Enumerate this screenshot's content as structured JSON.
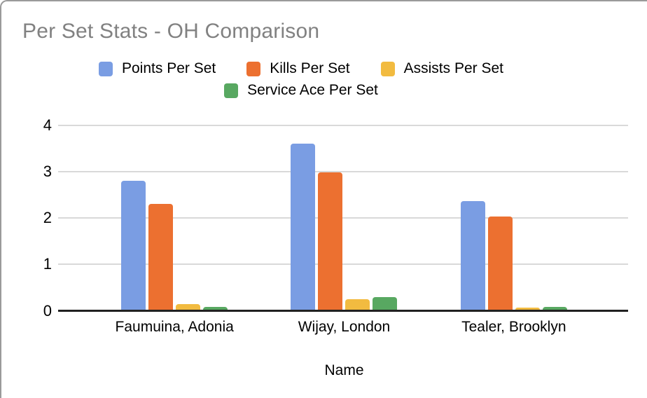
{
  "chart": {
    "title": "Per Set Stats - OH Comparison",
    "title_color": "#818181",
    "gridline_color": "#d9d9d9",
    "axis_color": "#212121",
    "text_color": "#000000"
  },
  "chart_data": {
    "type": "bar",
    "title": "Per Set Stats - OH Comparison",
    "xlabel": "Name",
    "ylabel": "",
    "categories": [
      "Faumuina, Adonia",
      "Wijay, London",
      "Tealer, Brooklyn"
    ],
    "series": [
      {
        "name": "Points Per Set",
        "color": "#7a9de3",
        "values": [
          2.78,
          3.59,
          2.34
        ]
      },
      {
        "name": "Kills Per Set",
        "color": "#ec7030",
        "values": [
          2.28,
          2.96,
          2.01
        ]
      },
      {
        "name": "Assists Per Set",
        "color": "#f2bb40",
        "values": [
          0.12,
          0.23,
          0.05
        ]
      },
      {
        "name": "Service Ace Per Set",
        "color": "#58a861",
        "values": [
          0.06,
          0.27,
          0.06
        ]
      }
    ],
    "ylim": [
      0,
      4
    ],
    "yticks": [
      0,
      1,
      2,
      3,
      4
    ],
    "grid": true,
    "legend_position": "top",
    "legend_rows": [
      [
        0,
        1,
        2
      ],
      [
        3
      ]
    ]
  }
}
